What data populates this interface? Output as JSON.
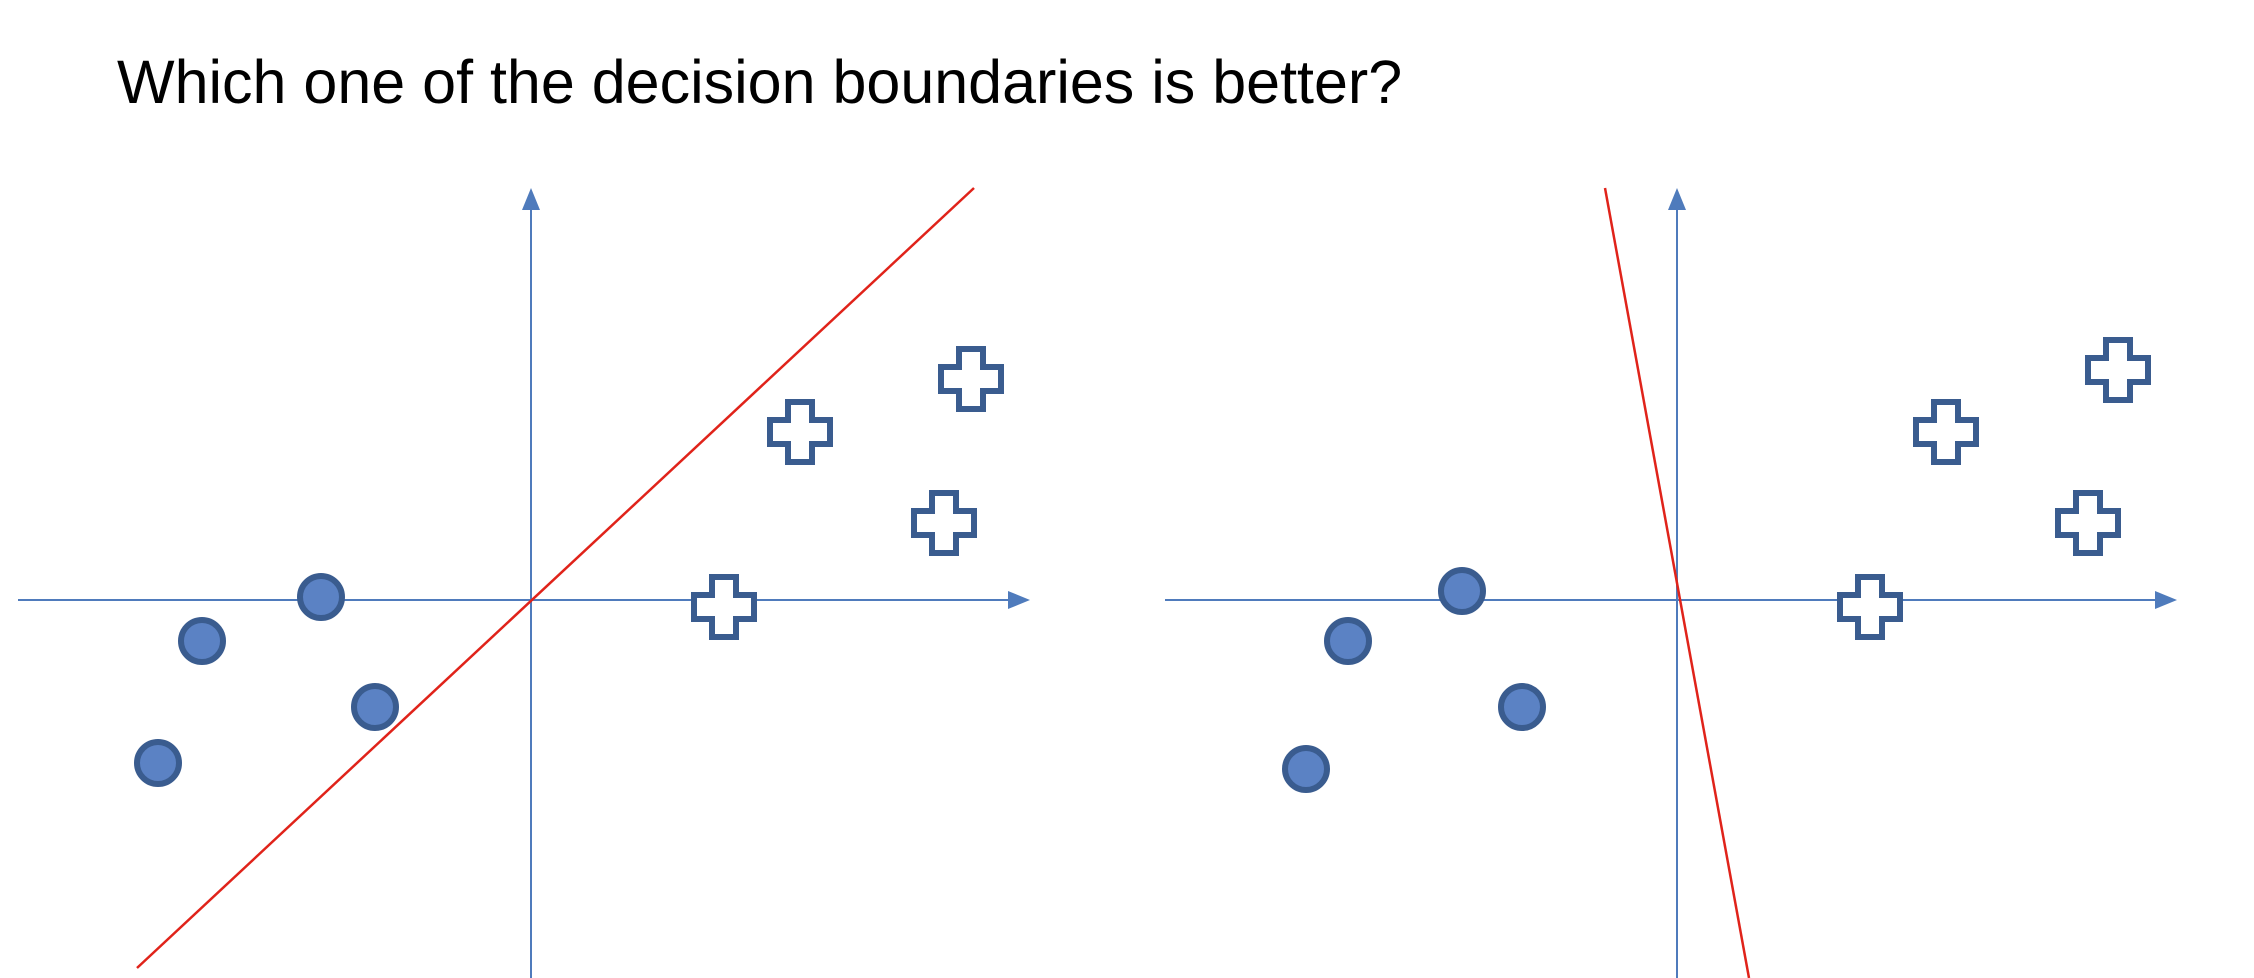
{
  "title": "Which one of the decision boundaries is better?",
  "colors": {
    "axis": "#4f7bbc",
    "boundary": "#e0231a",
    "circle_fill": "#5b82c4",
    "circle_stroke": "#3a5c8f",
    "cross_stroke": "#3a5c8f",
    "background": "#ffffff"
  },
  "panels": [
    {
      "id": "left",
      "circles": 4,
      "crosses": 4,
      "boundary": "line through origin with positive slope"
    },
    {
      "id": "right",
      "circles": 4,
      "crosses": 4,
      "boundary": "near-vertical line through origin with steep negative slope"
    }
  ]
}
